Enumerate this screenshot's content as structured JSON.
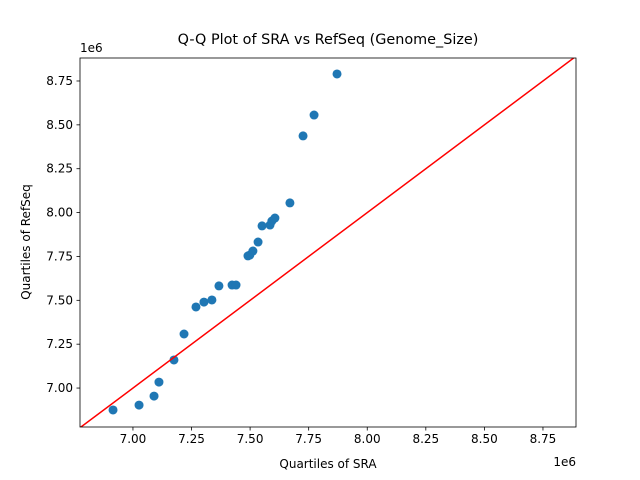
{
  "chart_data": {
    "type": "scatter",
    "title": "Q-Q Plot of SRA vs RefSeq (Genome_Size)",
    "xlabel": "Quartiles of SRA",
    "ylabel": "Quartiles of RefSeq",
    "x_offset_label": "1e6",
    "y_offset_label": "1e6",
    "color": "#1f77b4",
    "reference_line_color": "#ff0000",
    "x": [
      6.915,
      7.026,
      7.09,
      7.111,
      7.175,
      7.218,
      7.269,
      7.303,
      7.337,
      7.367,
      7.423,
      7.44,
      7.491,
      7.499,
      7.512,
      7.534,
      7.551,
      7.585,
      7.593,
      7.606,
      7.67,
      7.726,
      7.773,
      7.871
    ],
    "values": [
      6.875,
      6.903,
      6.954,
      7.034,
      7.16,
      7.308,
      7.462,
      7.49,
      7.502,
      7.582,
      7.587,
      7.587,
      7.753,
      7.758,
      7.781,
      7.832,
      7.924,
      7.929,
      7.952,
      7.969,
      8.055,
      8.437,
      8.556,
      8.79
    ],
    "xlim": [
      6.774,
      8.891
    ],
    "ylim": [
      6.778,
      8.881
    ],
    "xticks": [
      {
        "value": 7,
        "label": "7.00"
      },
      {
        "value": 7.25,
        "label": "7.25"
      },
      {
        "value": 7.5,
        "label": "7.50"
      },
      {
        "value": 7.75,
        "label": "7.75"
      },
      {
        "value": 8,
        "label": "8.00"
      },
      {
        "value": 8.25,
        "label": "8.25"
      },
      {
        "value": 8.5,
        "label": "8.50"
      },
      {
        "value": 8.75,
        "label": "8.75"
      }
    ],
    "yticks": [
      {
        "value": 7,
        "label": "7.00"
      },
      {
        "value": 7.25,
        "label": "7.25"
      },
      {
        "value": 7.5,
        "label": "7.50"
      },
      {
        "value": 7.75,
        "label": "7.75"
      },
      {
        "value": 8,
        "label": "8.00"
      },
      {
        "value": 8.25,
        "label": "8.25"
      },
      {
        "value": 8.5,
        "label": "8.50"
      },
      {
        "value": 8.75,
        "label": "8.75"
      }
    ],
    "grid": false
  }
}
